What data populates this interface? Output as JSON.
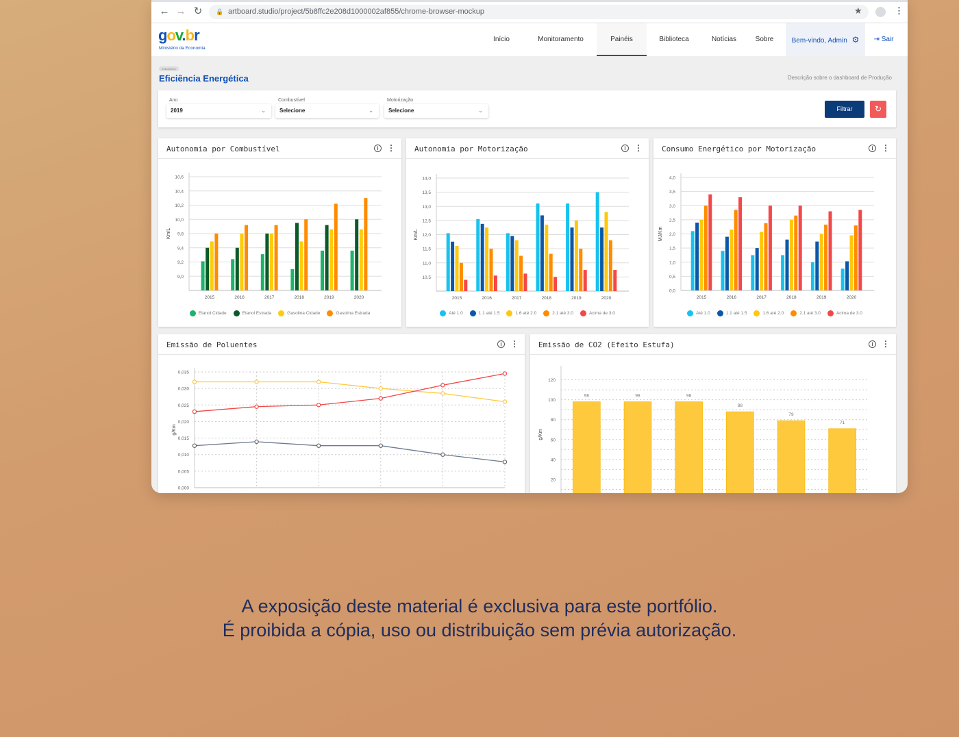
{
  "browser": {
    "url": "artboard.studio/project/5b8ffc2e208d1000002af855/chrome-browser-mockup"
  },
  "header": {
    "logo": "gov.br",
    "logo_sub": "Ministério da Economia",
    "nav": [
      "Início",
      "Monitoramento",
      "Painéis",
      "Biblioteca",
      "Notícias",
      "Sobre"
    ],
    "active_nav": "Painéis",
    "user": "Bem-vindo, Admin",
    "logout": "Sair"
  },
  "page": {
    "badge": "Indicadores",
    "title": "Eficiência Energética",
    "description": "Descrição sobre o dashboard de Produção"
  },
  "filters": {
    "ano": {
      "label": "Ano",
      "value": "2019"
    },
    "combustivel": {
      "label": "Combustível",
      "value": "Selecione"
    },
    "motorizacao": {
      "label": "Motorização",
      "value": "Selecione"
    },
    "filter_button": "Filtrar"
  },
  "colors": {
    "primary": "#1351b4",
    "button": "#0c3c78",
    "reset": "#f25a5a"
  },
  "chart_data": [
    {
      "type": "bar",
      "title": "Autonomia por Combustível",
      "ylabel": "Km/L",
      "ylim": [
        8.8,
        10.6
      ],
      "yticks": [
        "9,0",
        "9,2",
        "9,4",
        "9,8",
        "10,0",
        "10,2",
        "10,4",
        "10,6"
      ],
      "ytick_values": [
        9.0,
        9.2,
        9.4,
        9.8,
        10.0,
        10.2,
        10.4,
        10.6
      ],
      "categories": [
        "2015",
        "2016",
        "2017",
        "2018",
        "2019",
        "2020"
      ],
      "legend": "bottom",
      "series": [
        {
          "name": "Etanol Cidade",
          "color": "#1db36b",
          "values": [
            9.21,
            9.24,
            9.31,
            9.1,
            9.36,
            9.36
          ]
        },
        {
          "name": "Etanol Estrada",
          "color": "#0b5a2a",
          "values": [
            9.4,
            9.4,
            9.8,
            9.95,
            9.92,
            10.0
          ]
        },
        {
          "name": "Gasolina Cidade",
          "color": "#ffcd07",
          "values": [
            9.58,
            9.8,
            9.8,
            9.58,
            9.86,
            9.86
          ]
        },
        {
          "name": "Gasolina Estrada",
          "color": "#ff8c00",
          "values": [
            9.8,
            9.92,
            9.92,
            10.0,
            10.22,
            10.3
          ]
        }
      ]
    },
    {
      "type": "bar",
      "title": "Autonomia por Motorização",
      "ylabel": "Km/L",
      "ylim": [
        10.0,
        14.0
      ],
      "yticks": [
        "10,5",
        "11,0",
        "11,5",
        "12,0",
        "12,5",
        "13,0",
        "13,5",
        "14,0"
      ],
      "ytick_values": [
        10.5,
        11.0,
        11.5,
        12.0,
        12.5,
        13.0,
        13.5,
        14.0
      ],
      "categories": [
        "2015",
        "2016",
        "2017",
        "2018",
        "2019",
        "2020"
      ],
      "legend": "bottom",
      "series": [
        {
          "name": "Até 1.0",
          "color": "#17c3ee",
          "values": [
            12.05,
            12.55,
            12.05,
            13.1,
            13.1,
            13.5
          ]
        },
        {
          "name": "1.1 até 1.5",
          "color": "#0b57a8",
          "values": [
            11.75,
            12.38,
            11.95,
            12.68,
            12.25,
            12.25
          ]
        },
        {
          "name": "1.6 até 2.0",
          "color": "#ffc80a",
          "values": [
            11.6,
            12.25,
            11.8,
            12.35,
            12.5,
            12.8
          ]
        },
        {
          "name": "2.1 até 3.0",
          "color": "#ff8c00",
          "values": [
            11.0,
            11.5,
            11.25,
            11.32,
            11.5,
            11.8
          ]
        },
        {
          "name": "Acima de 3.0",
          "color": "#f34848",
          "values": [
            10.4,
            10.55,
            10.62,
            10.5,
            10.75,
            10.75
          ]
        }
      ]
    },
    {
      "type": "bar",
      "title": "Consumo Energético por Motorização",
      "ylabel": "MJ/Km",
      "ylim": [
        0,
        4.0
      ],
      "yticks": [
        "0,0",
        "0,5",
        "1,0",
        "1,5",
        "2,0",
        "2,5",
        "3,0",
        "3,5",
        "4,0"
      ],
      "ytick_values": [
        0,
        0.5,
        1.0,
        1.5,
        2.0,
        2.5,
        3.0,
        3.5,
        4.0
      ],
      "categories": [
        "2015",
        "2016",
        "2017",
        "2018",
        "2019",
        "2020"
      ],
      "legend": "bottom",
      "series": [
        {
          "name": "Até 1.0",
          "color": "#17c3ee",
          "values": [
            2.1,
            1.4,
            1.25,
            1.25,
            1.0,
            0.77
          ]
        },
        {
          "name": "1.1 até 1.5",
          "color": "#0b57a8",
          "values": [
            2.4,
            1.9,
            1.5,
            1.8,
            1.73,
            1.03
          ]
        },
        {
          "name": "1.6 até 2.0",
          "color": "#ffc80a",
          "values": [
            2.5,
            2.15,
            2.07,
            2.5,
            2.0,
            1.95
          ]
        },
        {
          "name": "2.1 até 3.0",
          "color": "#ff8c00",
          "values": [
            3.0,
            2.85,
            2.38,
            2.65,
            2.33,
            2.3
          ]
        },
        {
          "name": "Acima de 3.0",
          "color": "#f34848",
          "values": [
            3.4,
            3.3,
            3.0,
            3.0,
            2.8,
            2.85
          ]
        }
      ]
    },
    {
      "type": "line",
      "title": "Emissão de Poluentes",
      "ylabel": "g/Km",
      "ylim": [
        0,
        0.035
      ],
      "yticks": [
        "0,000",
        "0,005",
        "0,010",
        "0,015",
        "0,020",
        "0,025",
        "0,030",
        "0,035"
      ],
      "ytick_values": [
        0,
        0.005,
        0.01,
        0.015,
        0.02,
        0.025,
        0.03,
        0.035
      ],
      "grid": true,
      "series": [
        {
          "color": "#ffc93c",
          "values": [
            0.032,
            0.032,
            0.032,
            0.03,
            0.0285,
            0.026
          ]
        },
        {
          "color": "#f04848",
          "values": [
            0.023,
            0.0245,
            0.025,
            0.027,
            0.031,
            0.0345
          ]
        },
        {
          "color": "#6c7a90",
          "values": [
            0.0127,
            0.0139,
            0.0127,
            0.0127,
            0.01,
            0.0078
          ]
        }
      ]
    },
    {
      "type": "bar",
      "title": "Emissão de CO2 (Efeito Estufa)",
      "ylabel": "g/Km",
      "ylim": [
        0,
        130
      ],
      "yticks": [
        "20",
        "40",
        "60",
        "80",
        "100",
        "120"
      ],
      "ytick_values": [
        20,
        40,
        60,
        80,
        100,
        120
      ],
      "grid": true,
      "values": [
        98,
        98,
        98,
        88,
        79,
        71
      ],
      "labels": [
        "98",
        "98",
        "98",
        "88",
        "79",
        "71"
      ],
      "color": "#ffc93e"
    }
  ],
  "footer": {
    "line1": "A exposição deste material é exclusiva para este portfólio.",
    "line2": "É proibida a cópia, uso ou distribuição sem prévia autorização."
  }
}
